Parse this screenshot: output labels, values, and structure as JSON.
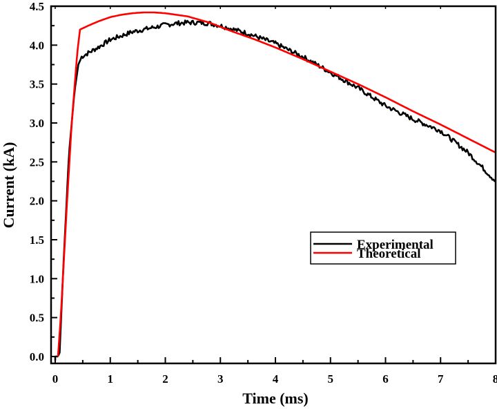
{
  "chart_data": {
    "type": "line",
    "title": "",
    "xlabel": "Time (ms)",
    "ylabel": "Current (kA)",
    "xlim": [
      -0.07,
      8
    ],
    "ylim": [
      -0.09,
      4.5
    ],
    "xticks": [
      "0",
      "1",
      "2",
      "3",
      "4",
      "5",
      "6",
      "7",
      "8"
    ],
    "yticks": [
      "0.0",
      "0.5",
      "1.0",
      "1.5",
      "2.0",
      "2.5",
      "3.0",
      "3.5",
      "4.0",
      "4.5"
    ],
    "grid": false,
    "legend_position": "center-right",
    "series": [
      {
        "name": "Experimental",
        "color": "#000000",
        "x": [
          0.0,
          0.05,
          0.08,
          0.15,
          0.25,
          0.35,
          0.42,
          0.48,
          0.6,
          0.8,
          1.0,
          1.2,
          1.4,
          1.6,
          1.8,
          2.0,
          2.2,
          2.4,
          2.6,
          2.8,
          3.0,
          3.5,
          4.0,
          4.5,
          5.0,
          5.5,
          6.0,
          6.5,
          7.0,
          7.5,
          8.0
        ],
        "y": [
          0.0,
          0.0,
          0.05,
          1.2,
          2.6,
          3.4,
          3.75,
          3.85,
          3.9,
          3.98,
          4.07,
          4.12,
          4.17,
          4.2,
          4.23,
          4.26,
          4.28,
          4.29,
          4.29,
          4.28,
          4.25,
          4.15,
          4.02,
          3.85,
          3.65,
          3.45,
          3.22,
          3.05,
          2.9,
          2.62,
          2.25
        ]
      },
      {
        "name": "Theoretical",
        "color": "#ff0000",
        "x": [
          0.05,
          0.1,
          0.2,
          0.3,
          0.4,
          0.45,
          0.6,
          0.8,
          1.0,
          1.2,
          1.4,
          1.6,
          1.8,
          2.0,
          2.4,
          2.8,
          3.2,
          3.6,
          4.0,
          4.5,
          5.0,
          5.5,
          6.0,
          6.5,
          7.0,
          7.5,
          8.0
        ],
        "y": [
          0.0,
          0.5,
          1.8,
          3.0,
          3.9,
          4.2,
          4.25,
          4.31,
          4.36,
          4.39,
          4.41,
          4.42,
          4.42,
          4.41,
          4.37,
          4.29,
          4.18,
          4.08,
          3.97,
          3.82,
          3.66,
          3.5,
          3.33,
          3.15,
          2.98,
          2.8,
          2.62
        ]
      }
    ]
  },
  "legend": {
    "items": [
      {
        "label": "Experimental",
        "color": "#000000"
      },
      {
        "label": "Theoretical",
        "color": "#ff0000"
      }
    ]
  }
}
